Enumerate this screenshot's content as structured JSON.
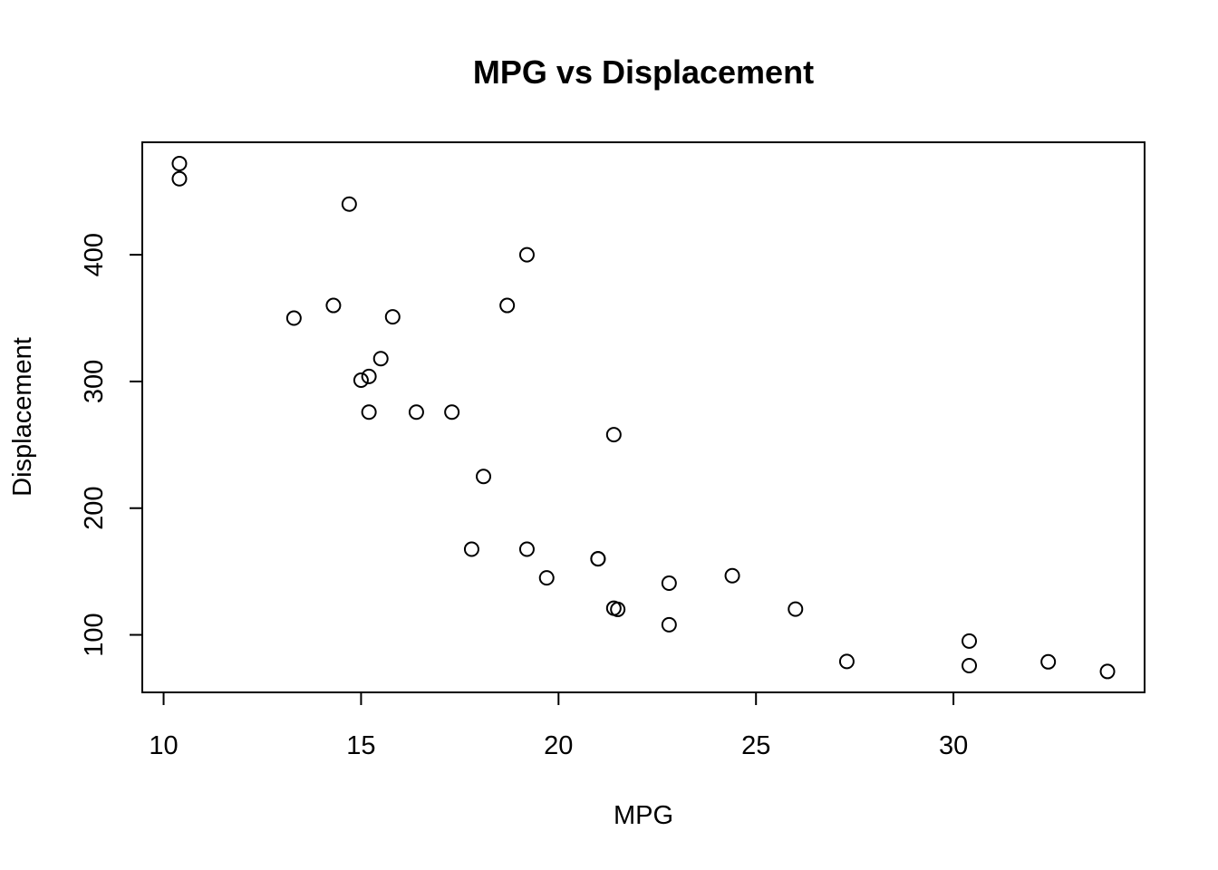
{
  "chart_data": {
    "type": "scatter",
    "title": "MPG vs Displacement",
    "xlabel": "MPG",
    "ylabel": "Displacement",
    "xlim": [
      9.46,
      34.84
    ],
    "ylim": [
      54.6,
      488.8
    ],
    "x_ticks": [
      10,
      15,
      20,
      25,
      30
    ],
    "y_ticks": [
      100,
      200,
      300,
      400
    ],
    "grid": false,
    "legend": "none",
    "marker": "open-circle",
    "points": [
      {
        "x": 21.0,
        "y": 160.0
      },
      {
        "x": 21.0,
        "y": 160.0
      },
      {
        "x": 22.8,
        "y": 108.0
      },
      {
        "x": 21.4,
        "y": 258.0
      },
      {
        "x": 18.7,
        "y": 360.0
      },
      {
        "x": 18.1,
        "y": 225.0
      },
      {
        "x": 14.3,
        "y": 360.0
      },
      {
        "x": 24.4,
        "y": 146.7
      },
      {
        "x": 22.8,
        "y": 140.8
      },
      {
        "x": 19.2,
        "y": 167.6
      },
      {
        "x": 17.8,
        "y": 167.6
      },
      {
        "x": 16.4,
        "y": 275.8
      },
      {
        "x": 17.3,
        "y": 275.8
      },
      {
        "x": 15.2,
        "y": 275.8
      },
      {
        "x": 10.4,
        "y": 472.0
      },
      {
        "x": 10.4,
        "y": 460.0
      },
      {
        "x": 14.7,
        "y": 440.0
      },
      {
        "x": 32.4,
        "y": 78.7
      },
      {
        "x": 30.4,
        "y": 75.7
      },
      {
        "x": 33.9,
        "y": 71.1
      },
      {
        "x": 21.5,
        "y": 120.1
      },
      {
        "x": 15.5,
        "y": 318.0
      },
      {
        "x": 15.2,
        "y": 304.0
      },
      {
        "x": 13.3,
        "y": 350.0
      },
      {
        "x": 19.2,
        "y": 400.0
      },
      {
        "x": 27.3,
        "y": 79.0
      },
      {
        "x": 26.0,
        "y": 120.3
      },
      {
        "x": 30.4,
        "y": 95.1
      },
      {
        "x": 15.8,
        "y": 351.0
      },
      {
        "x": 19.7,
        "y": 145.0
      },
      {
        "x": 15.0,
        "y": 301.0
      },
      {
        "x": 21.4,
        "y": 121.0
      }
    ]
  }
}
